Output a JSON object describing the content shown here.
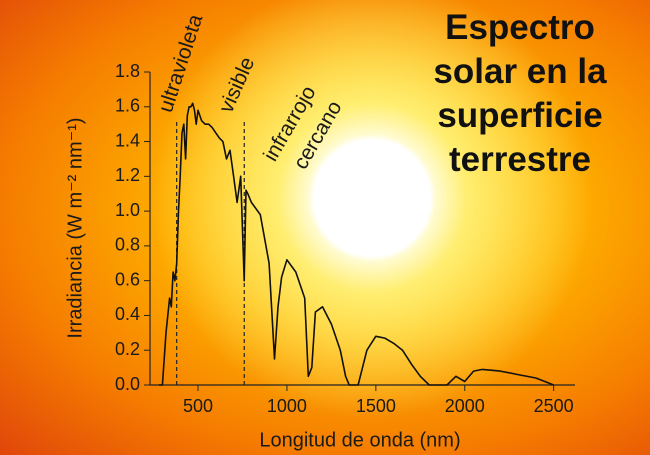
{
  "chart_data": {
    "type": "line",
    "title": "Espectro solar en la superficie terrestre",
    "x_label": "Longitud de onda (nm)",
    "y_label": "Irradiancia (W m⁻² nm⁻¹)",
    "annotations": [
      "ultravioleta",
      "visible",
      "infrarrojo",
      "cercano"
    ],
    "vlines": [
      380,
      760
    ],
    "x": [
      280,
      300,
      320,
      340,
      350,
      360,
      370,
      380,
      390,
      400,
      410,
      420,
      430,
      440,
      450,
      460,
      470,
      480,
      490,
      500,
      520,
      540,
      560,
      580,
      600,
      620,
      640,
      660,
      680,
      700,
      720,
      740,
      760,
      770,
      780,
      800,
      850,
      900,
      930,
      950,
      970,
      1000,
      1050,
      1100,
      1120,
      1140,
      1160,
      1200,
      1250,
      1300,
      1330,
      1350,
      1400,
      1450,
      1500,
      1550,
      1600,
      1650,
      1700,
      1750,
      1800,
      1850,
      1900,
      1950,
      2000,
      2050,
      2100,
      2200,
      2300,
      2400,
      2450,
      2500
    ],
    "values": [
      0,
      0,
      0.3,
      0.5,
      0.45,
      0.65,
      0.6,
      0.7,
      1.0,
      1.2,
      1.45,
      1.5,
      1.3,
      1.55,
      1.6,
      1.6,
      1.62,
      1.58,
      1.5,
      1.58,
      1.52,
      1.5,
      1.5,
      1.48,
      1.45,
      1.42,
      1.4,
      1.3,
      1.35,
      1.2,
      1.05,
      1.2,
      0.6,
      1.12,
      1.1,
      1.05,
      0.98,
      0.7,
      0.15,
      0.45,
      0.62,
      0.72,
      0.65,
      0.5,
      0.05,
      0.1,
      0.42,
      0.45,
      0.35,
      0.2,
      0.05,
      0,
      0,
      0.2,
      0.28,
      0.27,
      0.24,
      0.2,
      0.12,
      0.05,
      0,
      0,
      0,
      0.05,
      0.02,
      0.08,
      0.09,
      0.08,
      0.06,
      0.04,
      0.02,
      0
    ],
    "color": "#111111",
    "xlim": [
      230,
      2620
    ],
    "ylim": [
      0,
      1.8
    ],
    "xticks": [
      500,
      1000,
      1500,
      2000,
      2500
    ],
    "yticks": [
      {
        "value": 0,
        "label": "0.0"
      },
      0.2,
      0.4,
      0.6,
      0.8,
      {
        "value": 1,
        "label": "1.0"
      },
      1.2,
      1.4,
      1.6,
      1.8
    ]
  }
}
